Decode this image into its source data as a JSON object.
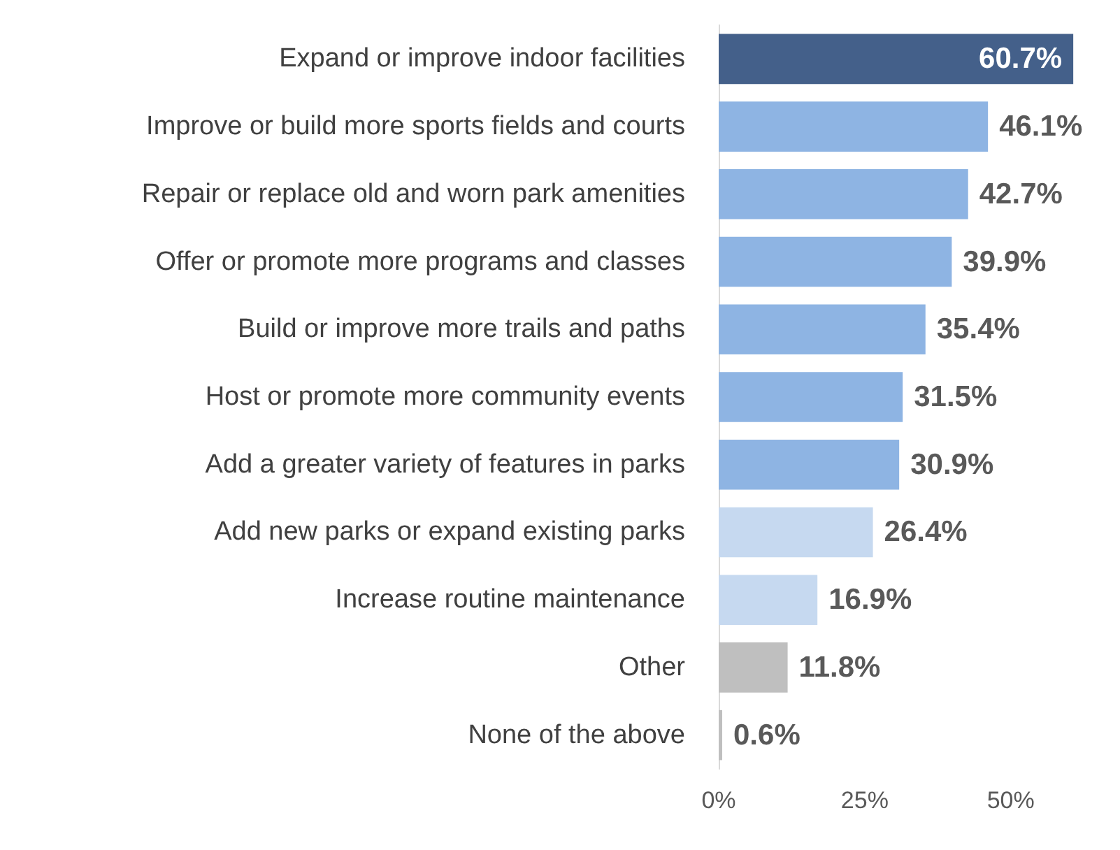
{
  "chart_data": {
    "type": "bar",
    "orientation": "horizontal",
    "categories": [
      "Expand or improve indoor facilities",
      "Improve or build more sports fields and courts",
      "Repair or replace old and worn park amenities",
      "Offer or promote more programs and classes",
      "Build or improve more trails and paths",
      "Host or promote more community events",
      "Add a greater variety of features in parks",
      "Add new parks or expand existing parks",
      "Increase routine maintenance",
      "Other",
      "None of the above"
    ],
    "values": [
      60.7,
      46.1,
      42.7,
      39.9,
      35.4,
      31.5,
      30.9,
      26.4,
      16.9,
      11.8,
      0.6
    ],
    "colors": [
      "#44608a",
      "#8eb4e3",
      "#8eb4e3",
      "#8eb4e3",
      "#8eb4e3",
      "#8eb4e3",
      "#8eb4e3",
      "#c6d9f0",
      "#c6d9f0",
      "#bfbfbf",
      "#bfbfbf"
    ],
    "value_labels": [
      "60.7%",
      "46.1%",
      "42.7%",
      "39.9%",
      "35.4%",
      "31.5%",
      "30.9%",
      "26.4%",
      "16.9%",
      "11.8%",
      "0.6%"
    ],
    "xlim": [
      0,
      62
    ],
    "xticks": [
      {
        "value": 0,
        "label": "0%"
      },
      {
        "value": 25,
        "label": "25%"
      },
      {
        "value": 50,
        "label": "50%"
      }
    ],
    "grid": false
  }
}
